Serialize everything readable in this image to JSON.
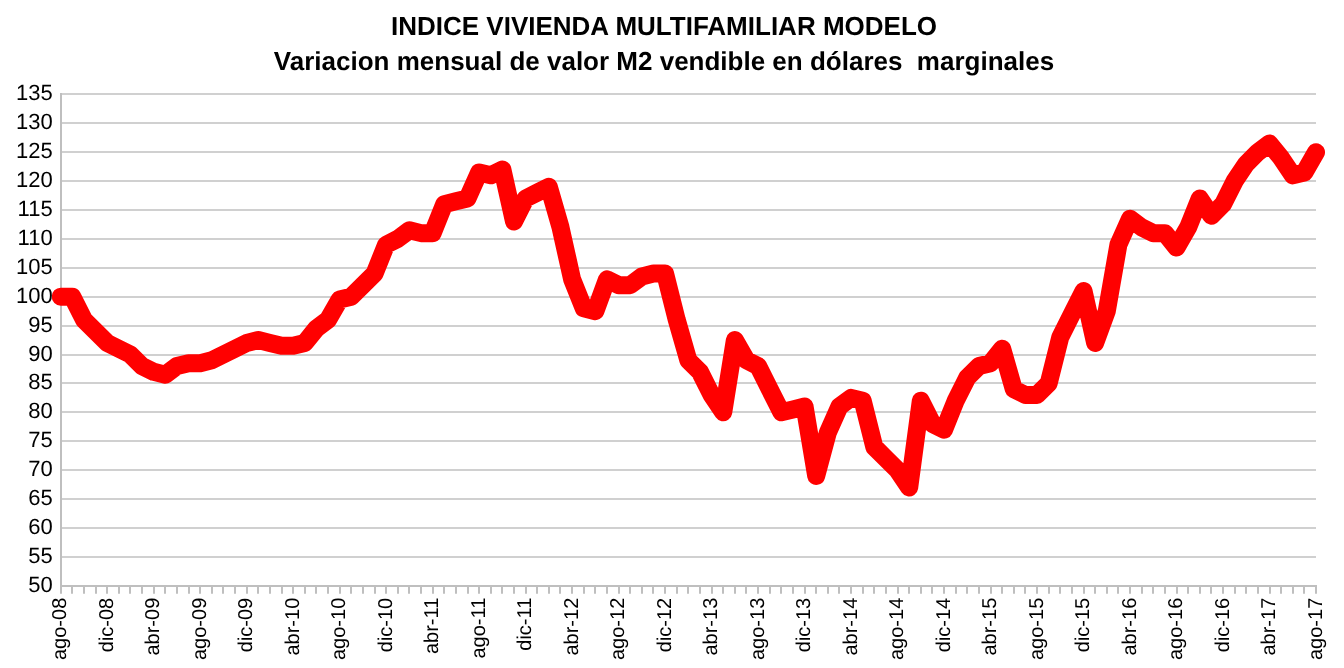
{
  "chart_data": {
    "type": "line",
    "title": "INDICE VIVIENDA MULTIFAMILIAR MODELO",
    "subtitle": "Variacion mensual de valor M2 vendible en dólares  marginales",
    "categories": [
      "ago-08",
      null,
      null,
      null,
      "dic-08",
      null,
      null,
      null,
      "abr-09",
      null,
      null,
      null,
      "ago-09",
      null,
      null,
      null,
      "dic-09",
      null,
      null,
      null,
      "abr-10",
      null,
      null,
      null,
      "ago-10",
      null,
      null,
      null,
      "dic-10",
      null,
      null,
      null,
      "abr-11",
      null,
      null,
      null,
      "ago-11",
      null,
      null,
      null,
      "dic-11",
      null,
      null,
      null,
      "abr-12",
      null,
      null,
      null,
      "ago-12",
      null,
      null,
      null,
      "dic-12",
      null,
      null,
      null,
      "abr-13",
      null,
      null,
      null,
      "ago-13",
      null,
      null,
      null,
      "dic-13",
      null,
      null,
      null,
      "abr-14",
      null,
      null,
      null,
      "ago-14",
      null,
      null,
      null,
      "dic-14",
      null,
      null,
      null,
      "abr-15",
      null,
      null,
      null,
      "ago-15",
      null,
      null,
      null,
      "dic-15",
      null,
      null,
      null,
      "abr-16",
      null,
      null,
      null,
      "ago-16",
      null,
      null,
      null,
      "dic-16",
      null,
      null,
      null,
      "abr-17",
      null,
      null,
      null,
      "ago-17"
    ],
    "values": [
      100,
      100,
      96,
      94,
      92,
      91,
      90,
      88,
      87,
      86.5,
      88,
      88.5,
      88.5,
      89,
      90,
      91,
      92,
      92.5,
      92,
      91.5,
      91.5,
      92,
      94.5,
      96,
      99.5,
      100,
      102,
      104,
      109,
      110,
      111.5,
      111,
      111,
      116,
      116.5,
      117,
      121.5,
      121,
      122,
      113,
      117,
      118,
      119,
      112,
      103,
      98,
      97.5,
      103,
      102,
      102,
      103.5,
      104,
      104,
      96,
      89,
      87,
      83,
      80,
      92.5,
      89,
      88,
      84,
      80,
      80.5,
      81,
      69,
      76.5,
      81,
      82.5,
      82,
      74,
      72,
      70,
      67,
      82,
      78,
      77,
      82,
      86,
      88,
      88.5,
      91,
      84,
      83,
      83,
      85,
      93,
      97,
      101,
      92,
      97.5,
      109,
      113.5,
      112,
      111,
      111,
      108.5,
      112,
      117,
      114,
      116,
      120,
      123,
      125,
      126.5,
      124,
      121,
      121.5,
      125
    ],
    "color": "#ff0000",
    "ylim": [
      50,
      135
    ],
    "yticks": [
      50,
      55,
      60,
      65,
      70,
      75,
      80,
      85,
      90,
      95,
      100,
      105,
      110,
      115,
      120,
      125,
      130,
      135
    ],
    "grid": "y",
    "legend": false,
    "marker": "none",
    "line_style": "solid"
  }
}
